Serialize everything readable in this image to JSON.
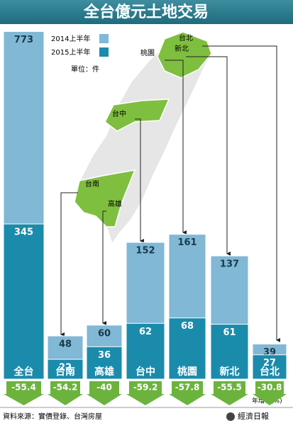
{
  "title": "全台億元土地交易",
  "unit": "單位：件",
  "source": "資料來源：實價登錄、台灣房屋",
  "publisher": "經濟日報",
  "growth_label": "年增率(%)",
  "map": {
    "labels": [
      "台北",
      "新北",
      "桃園",
      "台中",
      "台南",
      "高雄"
    ]
  },
  "chart_data": [
    {
      "type": "bar",
      "categories": [
        "全台"
      ],
      "ylim": [
        0,
        780
      ],
      "series": [
        {
          "name": "2014上半年",
          "color": "#80b8d6",
          "values": [
            773
          ]
        },
        {
          "name": "2015上半年",
          "color": "#1b8bab",
          "values": [
            345
          ]
        }
      ],
      "growth": {
        "color": "#6cb33e",
        "values": [
          -55.4
        ]
      }
    },
    {
      "type": "bar",
      "categories": [
        "台南",
        "高雄",
        "台中",
        "桃園",
        "新北",
        "台北"
      ],
      "ylim": [
        0,
        390
      ],
      "series": [
        {
          "name": "2014上半年",
          "color": "#80b8d6",
          "values": [
            48,
            60,
            152,
            161,
            137,
            39
          ]
        },
        {
          "name": "2015上半年",
          "color": "#1b8bab",
          "values": [
            22,
            36,
            62,
            68,
            61,
            27
          ]
        }
      ],
      "growth": {
        "color": "#6cb33e",
        "values": [
          -54.2,
          -40.0,
          -59.2,
          -57.8,
          -55.5,
          -30.8
        ]
      }
    }
  ]
}
